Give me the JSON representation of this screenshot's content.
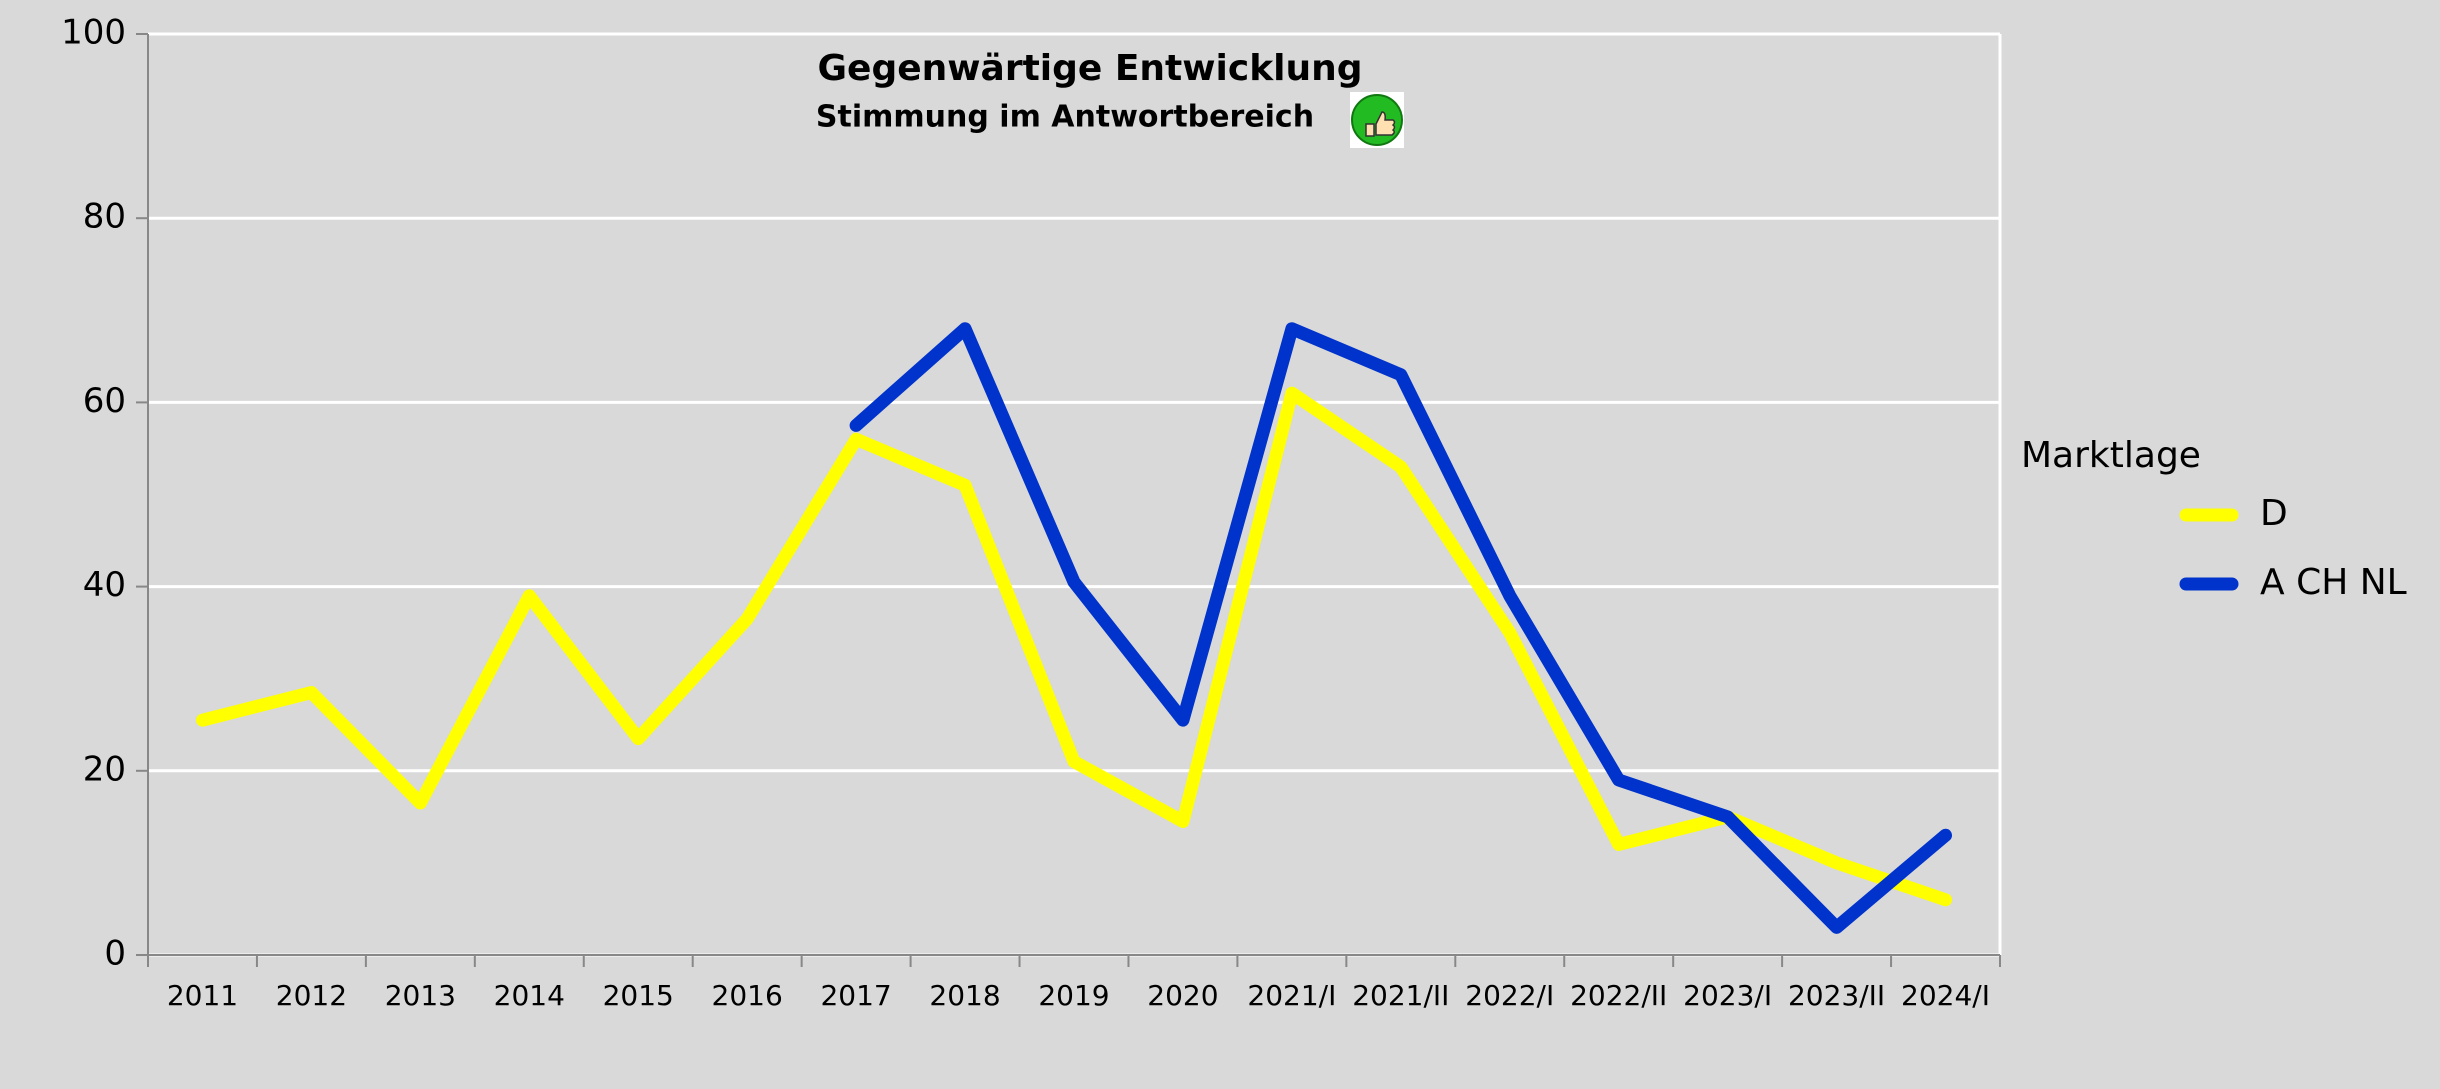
{
  "chart_data": {
    "type": "line",
    "title": "Gegenwärtige Entwicklung",
    "subtitle": "Stimmung im Antwortbereich",
    "categories": [
      "2011",
      "2012",
      "2013",
      "2014",
      "2015",
      "2016",
      "2017",
      "2018",
      "2019",
      "2020",
      "2021/I",
      "2021/II",
      "2022/I",
      "2022/II",
      "2023/I",
      "2023/II",
      "2024/I"
    ],
    "series": [
      {
        "name": "D",
        "color": "#ffff00",
        "values": [
          25.5,
          28.5,
          16.5,
          39,
          23.5,
          36.5,
          56,
          51,
          21,
          14.5,
          61,
          53,
          35,
          12,
          15,
          10,
          6
        ]
      },
      {
        "name": "A CH NL",
        "color": "#0033cc",
        "values": [
          null,
          null,
          null,
          null,
          null,
          null,
          57.5,
          68,
          40.5,
          25.5,
          68,
          63,
          39,
          19,
          15,
          3,
          13
        ]
      }
    ],
    "legend_title": "Marktlage",
    "ylim": [
      0,
      100
    ],
    "yticks": [
      0,
      20,
      40,
      60,
      80,
      100
    ],
    "grid": true,
    "legend": "right"
  }
}
